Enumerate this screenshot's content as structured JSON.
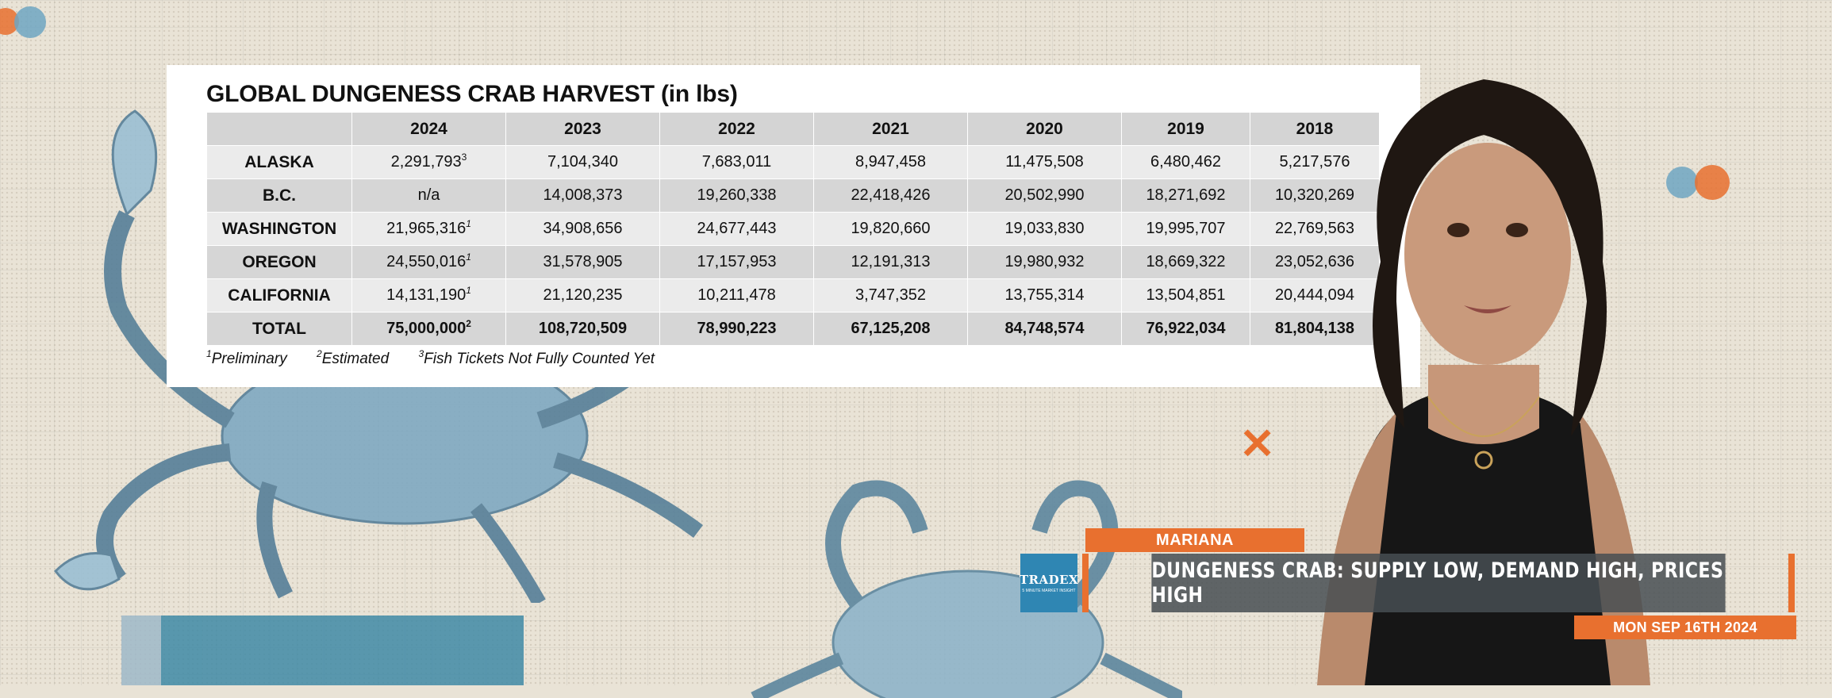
{
  "table": {
    "title": "GLOBAL DUNGENESS CRAB HARVEST (in lbs)",
    "columns": [
      "2024",
      "2023",
      "2022",
      "2021",
      "2020",
      "2019",
      "2018"
    ],
    "rows": [
      {
        "label": "ALASKA",
        "values": [
          "2,291,793",
          "7,104,340",
          "7,683,011",
          "8,947,458",
          "11,475,508",
          "6,480,462",
          "5,217,576"
        ],
        "first_sup": "3"
      },
      {
        "label": "B.C.",
        "values": [
          "n/a",
          "14,008,373",
          "19,260,338",
          "22,418,426",
          "20,502,990",
          "18,271,692",
          "10,320,269"
        ],
        "first_sup": ""
      },
      {
        "label": "WASHINGTON",
        "values": [
          "21,965,316",
          "34,908,656",
          "24,677,443",
          "19,820,660",
          "19,033,830",
          "19,995,707",
          "22,769,563"
        ],
        "first_sup": "1"
      },
      {
        "label": "OREGON",
        "values": [
          "24,550,016",
          "31,578,905",
          "17,157,953",
          "12,191,313",
          "19,980,932",
          "18,669,322",
          "23,052,636"
        ],
        "first_sup": "1"
      },
      {
        "label": "CALIFORNIA",
        "values": [
          "14,131,190",
          "21,120,235",
          "10,211,478",
          "3,747,352",
          "13,755,314",
          "13,504,851",
          "20,444,094"
        ],
        "first_sup": "1"
      },
      {
        "label": "TOTAL",
        "values": [
          "75,000,000",
          "108,720,509",
          "78,990,223",
          "67,125,208",
          "84,748,574",
          "76,922,034",
          "81,804,138"
        ],
        "first_sup": "2"
      }
    ],
    "notes": [
      {
        "sup": "1",
        "text": "Preliminary"
      },
      {
        "sup": "2",
        "text": "Estimated"
      },
      {
        "sup": "3",
        "text": "Fish Tickets Not Fully Counted Yet"
      }
    ]
  },
  "lower_third": {
    "name": "MARIANA",
    "logo": "TRADEX",
    "logo_sub": "5 MINUTE MARKET INSIGHT",
    "headline": "DUNGENESS CRAB: SUPPLY LOW, DEMAND HIGH, PRICES HIGH",
    "date": "MON SEP 16TH 2024"
  },
  "colors": {
    "accent": "#e8702f",
    "background": "#e9e3d6",
    "logo_blue": "#2f86b3",
    "headline_bg": "#464e52"
  }
}
